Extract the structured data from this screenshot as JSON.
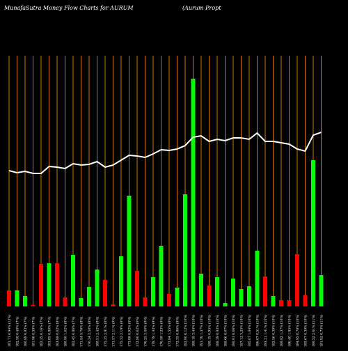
{
  "chart_data": {
    "type": "bar",
    "title": "MunafaSutra  Money Flow  Charts for AURUM",
    "subtitle": "(Aurum Propt",
    "categories": [
      "181.71 0.94% (12%)",
      "182.58 0.48% (7%)",
      "180.88 0.93% (7%)",
      "181.96 0.59% (7%)",
      "182.25 0.16% (7%)",
      "183.85 0.88% (7%)",
      "183.88 0.02% (8%)",
      "180.90 1.62% (8%)",
      "182.45 0.86% (7%)",
      "171.94 5.76% (8%)",
      "176.24 2.50% (8%)",
      "180.51 2.42% (8%)",
      "175.25 2.91% (8%)",
      "171.57 2.11% (9%)",
      "175.32 2.19% (9%)",
      "173.88 0.82% (9%)",
      "172.80 0.62% (9%)",
      "176.25 2.00% (9%)",
      "178.78 1.43% (9%)",
      "176.58 1.23% (9%)",
      "173.84 1.55% (9%)",
      "172.35 0.86% (9%)",
      "182.90 6.12% (10%)",
      "189.19 3.44% (10%)",
      "191.78 1.37% (10%)",
      "190.15 0.85% (10%)",
      "188.39 0.93% (10%)",
      "189.66 0.67% (10%)",
      "190.91 0.66% (10%)",
      "197.12 3.25% (10%)",
      "195.07 1.04% (10%)",
      "196.07 0.51% (10%)",
      "193.31 1.41% (10%)",
      "192.56 0.39% (10%)",
      "189.92 1.37% (10%)",
      "186.40 1.85% (10%)",
      "184.95 0.78% (10%)",
      "185.67 0.39% (10%)",
      "190.52 2.61% (11%)",
      "191.92 0.73% (11%)"
    ],
    "series": [
      {
        "name": "Money Flow",
        "colors": [
          "#ff0000",
          "#00ff00",
          "#00ff00",
          "#ff0000",
          "#ff0000",
          "#00ff00",
          "#ff0000",
          "#ff0000",
          "#00ff00",
          "#00ff00",
          "#00ff00",
          "#00ff00",
          "#ff0000",
          "#ff0000",
          "#00ff00",
          "#00ff00",
          "#ff0000",
          "#ff0000",
          "#00ff00",
          "#00ff00",
          "#ff0000",
          "#00ff00",
          "#00ff00",
          "#00ff00",
          "#00ff00",
          "#ff0000",
          "#00ff00",
          "#00ff00",
          "#00ff00",
          "#00ff00",
          "#00ff00",
          "#00ff00",
          "#ff0000",
          "#00ff00",
          "#ff0000",
          "#ff0000",
          "#ff0000",
          "#ff0000",
          "#00ff00",
          "#00ff00"
        ],
        "values": [
          23,
          23,
          15,
          2,
          61,
          62,
          62,
          13,
          74,
          12,
          28,
          53,
          38,
          3,
          72,
          159,
          51,
          13,
          42,
          87,
          18,
          27,
          161,
          327,
          47,
          30,
          42,
          5,
          40,
          25,
          29,
          80,
          43,
          15,
          9,
          9,
          75,
          16,
          210,
          45
        ]
      },
      {
        "name": "Price",
        "color": "#ffffff",
        "values": [
          195,
          192,
          194,
          191,
          191,
          201,
          200,
          198,
          205,
          203,
          204,
          208,
          200,
          203,
          210,
          217,
          216,
          214,
          219,
          225,
          224,
          226,
          231,
          243,
          245,
          237,
          240,
          238,
          242,
          242,
          240,
          249,
          237,
          237,
          235,
          233,
          226,
          223,
          246,
          250
        ]
      }
    ],
    "ylim": [
      0,
      360
    ],
    "grid_color": "#cc7a00",
    "background": "#000000"
  }
}
